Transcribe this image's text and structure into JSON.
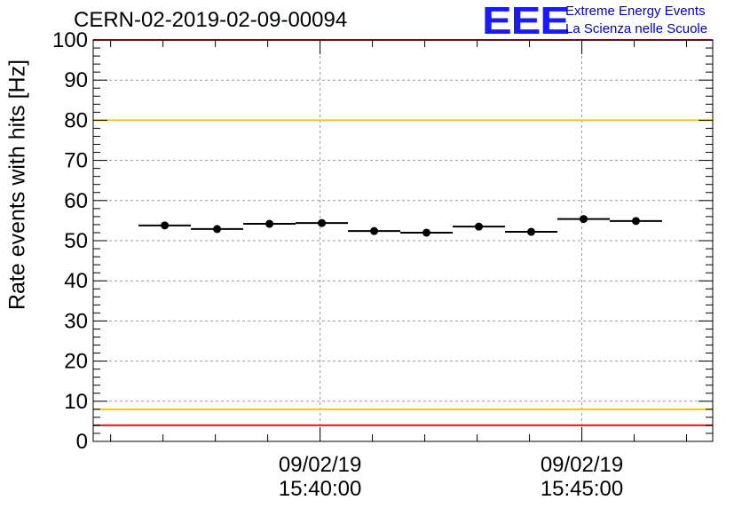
{
  "header": {
    "run_title": "CERN-02-2019-02-09-00094",
    "logo_mark": "EEE",
    "logo_line1": "Extreme Energy Events",
    "logo_line2": "La Scienza nelle Scuole"
  },
  "colors": {
    "limit_red": "#e41a1c",
    "limit_yellow": "#f0c814",
    "logo_blue": "#1a1aff",
    "grid": "#999999"
  },
  "chart_data": {
    "type": "scatter",
    "ylabel": "Rate events with hits [Hz]",
    "ylim": [
      0,
      100
    ],
    "yticks": [
      0,
      10,
      20,
      30,
      40,
      50,
      60,
      70,
      80,
      90,
      100
    ],
    "xlim": [
      "15:35:40",
      "15:47:30"
    ],
    "xticks": [
      {
        "time": "15:40:00",
        "date": "09/02/19"
      },
      {
        "time": "15:45:00",
        "date": "09/02/19"
      }
    ],
    "grid": true,
    "reference_lines": [
      {
        "y": 100,
        "color": "red"
      },
      {
        "y": 80,
        "color": "yellow"
      },
      {
        "y": 8,
        "color": "yellow"
      },
      {
        "y": 4,
        "color": "red"
      }
    ],
    "bin_width_s": 60,
    "points": [
      {
        "t": "15:37:02",
        "value": 53.8
      },
      {
        "t": "15:38:02",
        "value": 52.9
      },
      {
        "t": "15:39:02",
        "value": 54.2
      },
      {
        "t": "15:40:02",
        "value": 54.4
      },
      {
        "t": "15:41:02",
        "value": 52.4
      },
      {
        "t": "15:42:02",
        "value": 52.0
      },
      {
        "t": "15:43:02",
        "value": 53.5
      },
      {
        "t": "15:44:02",
        "value": 52.2
      },
      {
        "t": "15:45:02",
        "value": 55.4
      },
      {
        "t": "15:46:02",
        "value": 54.9
      }
    ]
  }
}
